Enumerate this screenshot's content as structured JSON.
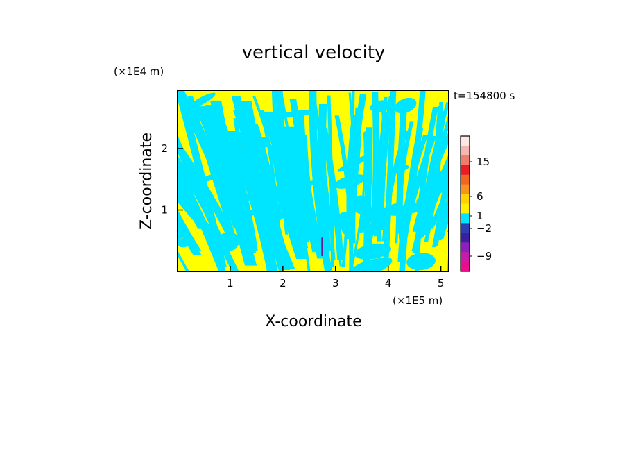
{
  "chart_data": {
    "type": "heatmap",
    "title": "vertical velocity",
    "xlabel": "X-coordinate",
    "ylabel": "Z-coordinate",
    "x_unit": "(×1E5 m)",
    "y_unit": "(×1E4 m)",
    "time_label": "t=154800 s",
    "xlim": [
      0,
      5.15
    ],
    "ylim": [
      0,
      2.95
    ],
    "x_ticks": [
      "1",
      "2",
      "3",
      "4",
      "5"
    ],
    "y_ticks": [
      "1",
      "2"
    ],
    "field_colors": {
      "positive": "#ffff00",
      "negative": "#00e5ff",
      "extreme_negative": "#6a1b9a"
    },
    "colorbar": {
      "levels": [
        {
          "color": "#fde9e4"
        },
        {
          "color": "#f4b8b0"
        },
        {
          "color": "#f07c6c"
        },
        {
          "color": "#ec1c24"
        },
        {
          "color": "#f26522"
        },
        {
          "color": "#f7941d"
        },
        {
          "color": "#ffd200"
        },
        {
          "color": "#fff200"
        },
        {
          "color": "#00e5ff"
        },
        {
          "color": "#2b3fb0"
        },
        {
          "color": "#3b1fa0"
        },
        {
          "color": "#8b1fbf"
        },
        {
          "color": "#c81ba8"
        },
        {
          "color": "#ec0c8c"
        }
      ],
      "labels": [
        {
          "text": "15",
          "value": 15
        },
        {
          "text": "6",
          "value": 6
        },
        {
          "text": "1",
          "value": 1
        },
        {
          "text": "−2",
          "value": -2
        },
        {
          "text": "−9",
          "value": -9
        }
      ]
    }
  }
}
